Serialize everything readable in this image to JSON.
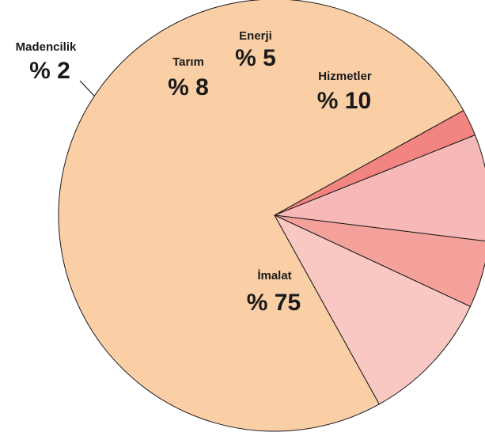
{
  "chart_data": {
    "type": "pie",
    "title": "",
    "slices": [
      {
        "label": "İmalat",
        "value_label": "% 75",
        "value": 75,
        "color": "#fbcfa6"
      },
      {
        "label": "Madencilik",
        "value_label": "% 2",
        "value": 2,
        "color": "#f28582"
      },
      {
        "label": "Tarım",
        "value_label": "% 8",
        "value": 8,
        "color": "#f7b8b8"
      },
      {
        "label": "Enerji",
        "value_label": "% 5",
        "value": 5,
        "color": "#f4a19b"
      },
      {
        "label": "Hizmetler",
        "value_label": "% 10",
        "value": 10,
        "color": "#f9c8c2"
      }
    ]
  }
}
